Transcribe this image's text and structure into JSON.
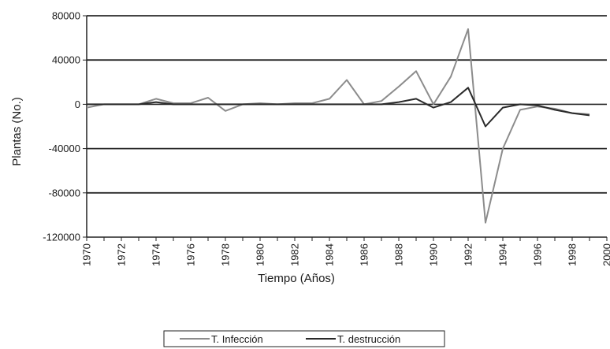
{
  "chart_data": {
    "type": "line",
    "title": "",
    "xlabel": "Tiempo (Años)",
    "ylabel": "Plantas (No.)",
    "xlim": [
      1970,
      2000
    ],
    "ylim": [
      -120000,
      80000
    ],
    "x_ticks": [
      1970,
      1972,
      1974,
      1976,
      1978,
      1980,
      1982,
      1984,
      1986,
      1988,
      1990,
      1992,
      1994,
      1996,
      1998,
      2000
    ],
    "y_ticks": [
      80000,
      40000,
      0,
      -40000,
      -80000,
      -120000
    ],
    "y_tick_labels": [
      "80000",
      "40000",
      "0",
      "-40000",
      "-80000",
      "-120000"
    ],
    "grid": "horizontal",
    "legend_position": "bottom",
    "series": [
      {
        "name": "T. Infección",
        "color": "#8c8c8c",
        "x": [
          1970,
          1971,
          1972,
          1973,
          1974,
          1975,
          1976,
          1977,
          1978,
          1979,
          1980,
          1981,
          1982,
          1983,
          1984,
          1985,
          1986,
          1987,
          1988,
          1989,
          1990,
          1991,
          1992,
          1993,
          1994,
          1995,
          1996,
          1997,
          1998,
          1999
        ],
        "values": [
          -3000,
          0,
          0,
          0,
          5000,
          1000,
          1000,
          6000,
          -6000,
          0,
          1000,
          0,
          1000,
          1000,
          5000,
          22000,
          0,
          3000,
          16000,
          30000,
          0,
          25000,
          68000,
          -107000,
          -40000,
          -5000,
          -2000,
          -4000,
          -8000,
          -9000
        ]
      },
      {
        "name": "T. destrucción",
        "color": "#2a2a2a",
        "x": [
          1970,
          1971,
          1972,
          1973,
          1974,
          1975,
          1976,
          1977,
          1978,
          1979,
          1980,
          1981,
          1982,
          1983,
          1984,
          1985,
          1986,
          1987,
          1988,
          1989,
          1990,
          1991,
          1992,
          1993,
          1994,
          1995,
          1996,
          1997,
          1998,
          1999
        ],
        "values": [
          0,
          0,
          0,
          0,
          2000,
          0,
          0,
          0,
          0,
          0,
          0,
          0,
          0,
          0,
          0,
          0,
          0,
          0,
          2000,
          5000,
          -3000,
          2000,
          15000,
          -20000,
          -3000,
          0,
          -1000,
          -5000,
          -8000,
          -10000
        ]
      }
    ]
  }
}
